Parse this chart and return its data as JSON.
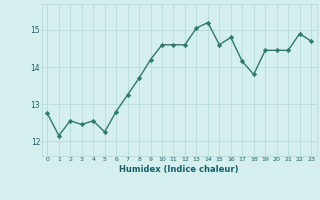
{
  "x": [
    0,
    1,
    2,
    3,
    4,
    5,
    6,
    7,
    8,
    9,
    10,
    11,
    12,
    13,
    14,
    15,
    16,
    17,
    18,
    19,
    20,
    21,
    22,
    23
  ],
  "y": [
    12.75,
    12.15,
    12.55,
    12.45,
    12.55,
    12.25,
    12.8,
    13.25,
    13.7,
    14.2,
    14.6,
    14.6,
    14.6,
    15.05,
    15.2,
    14.6,
    14.8,
    14.15,
    13.8,
    14.45,
    14.45,
    14.45,
    14.9,
    14.7
  ],
  "line_color": "#2d7a6e",
  "marker": "D",
  "markersize": 2.2,
  "linewidth": 1.0,
  "bg_color": "#d4efee",
  "grid_color": "#b8dbd9",
  "xlabel": "Humidex (Indice chaleur)",
  "xlabel_color": "#1a5f6a",
  "tick_label_color": "#1a5f6a",
  "yticks": [
    12,
    13,
    14,
    15
  ],
  "ylim": [
    11.6,
    15.7
  ],
  "xlim": [
    -0.5,
    23.5
  ],
  "xtick_fontsize": 4.5,
  "ytick_fontsize": 5.5,
  "xlabel_fontsize": 6.0
}
